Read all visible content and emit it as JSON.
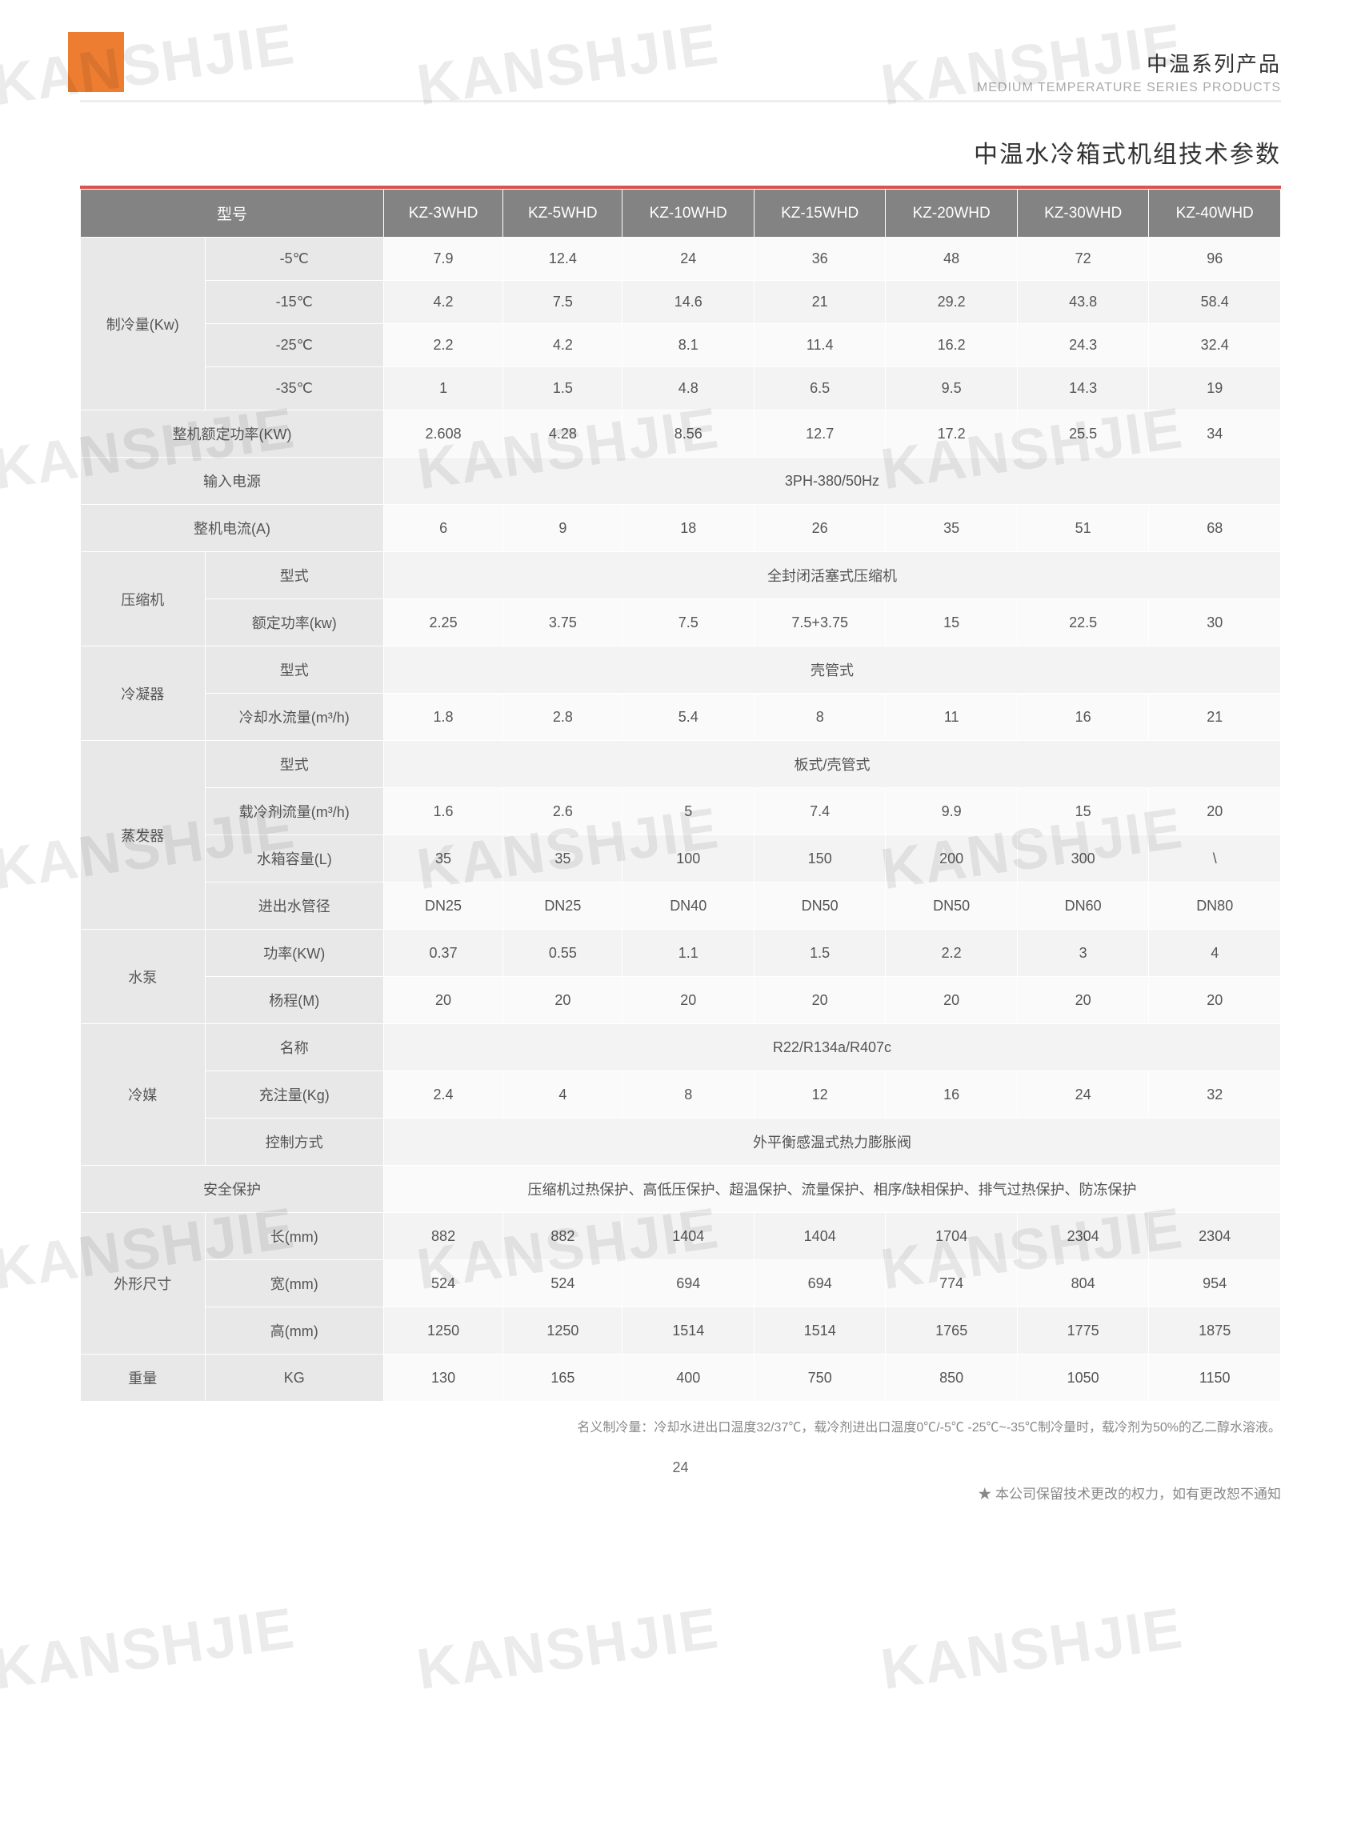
{
  "watermark_text": "KANSHJIE",
  "header": {
    "series_cn": "中温系列产品",
    "series_en": "MEDIUM TEMPERATURE SERIES PRODUCTS",
    "table_title": "中温水冷箱式机组技术参数"
  },
  "table": {
    "model_header": "型号",
    "models": [
      "KZ-3WHD",
      "KZ-5WHD",
      "KZ-10WHD",
      "KZ-15WHD",
      "KZ-20WHD",
      "KZ-30WHD",
      "KZ-40WHD"
    ],
    "rows": [
      {
        "group": "制冷量(Kw)",
        "label": "-5℃",
        "vals": [
          "7.9",
          "12.4",
          "24",
          "36",
          "48",
          "72",
          "96"
        ]
      },
      {
        "group": "",
        "label": "-15℃",
        "vals": [
          "4.2",
          "7.5",
          "14.6",
          "21",
          "29.2",
          "43.8",
          "58.4"
        ]
      },
      {
        "group": "",
        "label": "-25℃",
        "vals": [
          "2.2",
          "4.2",
          "8.1",
          "11.4",
          "16.2",
          "24.3",
          "32.4"
        ]
      },
      {
        "group": "",
        "label": "-35℃",
        "vals": [
          "1",
          "1.5",
          "4.8",
          "6.5",
          "9.5",
          "14.3",
          "19"
        ]
      },
      {
        "span": true,
        "label": "整机额定功率(KW)",
        "vals": [
          "2.608",
          "4.28",
          "8.56",
          "12.7",
          "17.2",
          "25.5",
          "34"
        ]
      },
      {
        "span": true,
        "label": "输入电源",
        "merged": "3PH-380/50Hz"
      },
      {
        "span": true,
        "label": "整机电流(A)",
        "vals": [
          "6",
          "9",
          "18",
          "26",
          "35",
          "51",
          "68"
        ]
      },
      {
        "group": "压缩机",
        "label": "型式",
        "merged": "全封闭活塞式压缩机"
      },
      {
        "group": "",
        "label": "额定功率(kw)",
        "vals": [
          "2.25",
          "3.75",
          "7.5",
          "7.5+3.75",
          "15",
          "22.5",
          "30"
        ]
      },
      {
        "group": "冷凝器",
        "label": "型式",
        "merged": "壳管式"
      },
      {
        "group": "",
        "label": "冷却水流量(m³/h)",
        "vals": [
          "1.8",
          "2.8",
          "5.4",
          "8",
          "11",
          "16",
          "21"
        ]
      },
      {
        "group": "蒸发器",
        "label": "型式",
        "merged": "板式/壳管式"
      },
      {
        "group": "",
        "label": "载冷剂流量(m³/h)",
        "vals": [
          "1.6",
          "2.6",
          "5",
          "7.4",
          "9.9",
          "15",
          "20"
        ]
      },
      {
        "group": "",
        "label": "水箱容量(L)",
        "vals": [
          "35",
          "35",
          "100",
          "150",
          "200",
          "300",
          "\\"
        ]
      },
      {
        "group": "",
        "label": "进出水管径",
        "vals": [
          "DN25",
          "DN25",
          "DN40",
          "DN50",
          "DN50",
          "DN60",
          "DN80"
        ]
      },
      {
        "group": "水泵",
        "label": "功率(KW)",
        "vals": [
          "0.37",
          "0.55",
          "1.1",
          "1.5",
          "2.2",
          "3",
          "4"
        ]
      },
      {
        "group": "",
        "label": "杨程(M)",
        "vals": [
          "20",
          "20",
          "20",
          "20",
          "20",
          "20",
          "20"
        ]
      },
      {
        "group": "冷媒",
        "label": "名称",
        "merged": "R22/R134a/R407c"
      },
      {
        "group": "",
        "label": "充注量(Kg)",
        "vals": [
          "2.4",
          "4",
          "8",
          "12",
          "16",
          "24",
          "32"
        ]
      },
      {
        "group": "",
        "label": "控制方式",
        "merged": "外平衡感温式热力膨胀阀"
      },
      {
        "span": true,
        "label": "安全保护",
        "merged": "压缩机过热保护、高低压保护、超温保护、流量保护、相序/缺相保护、排气过热保护、防冻保护"
      },
      {
        "group": "外形尺寸",
        "label": "长(mm)",
        "vals": [
          "882",
          "882",
          "1404",
          "1404",
          "1704",
          "2304",
          "2304"
        ]
      },
      {
        "group": "",
        "label": "宽(mm)",
        "vals": [
          "524",
          "524",
          "694",
          "694",
          "774",
          "804",
          "954"
        ]
      },
      {
        "group": "",
        "label": "高(mm)",
        "vals": [
          "1250",
          "1250",
          "1514",
          "1514",
          "1765",
          "1775",
          "1875"
        ]
      },
      {
        "group": "重量",
        "label": "KG",
        "vals": [
          "130",
          "165",
          "400",
          "750",
          "850",
          "1050",
          "1150"
        ]
      }
    ],
    "group_spans": {
      "制冷量(Kw)": 4,
      "压缩机": 2,
      "冷凝器": 2,
      "蒸发器": 4,
      "水泵": 2,
      "冷媒": 3,
      "外形尺寸": 3,
      "重量": 1
    }
  },
  "footnote": "名义制冷量：冷却水进出口温度32/37℃，载冷剂进出口温度0℃/-5℃  -25℃~-35℃制冷量时，载冷剂为50%的乙二醇水溶液。",
  "page_number": "24",
  "disclaimer": "★ 本公司保留技术更改的权力，如有更改恕不通知",
  "colors": {
    "accent": "#ed7d31",
    "header_bg": "#838383",
    "row_label_bg": "#e8e8e8",
    "cell_bg": "#f3f3f3",
    "red_rule": "#d9534f"
  }
}
